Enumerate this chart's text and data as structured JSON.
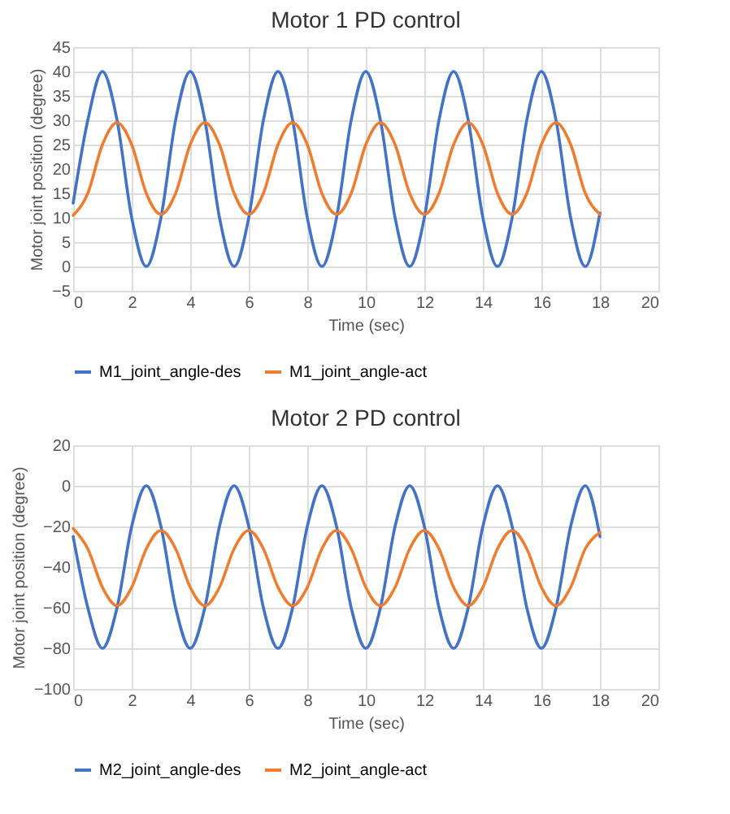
{
  "chart_data": [
    {
      "type": "line",
      "title": "Motor 1 PD control",
      "xlabel": "Time (sec)",
      "ylabel": "Motor joint position (degree)",
      "x": [
        0,
        0.5,
        1,
        1.5,
        2,
        2.5,
        3,
        3.5,
        4,
        4.5,
        5,
        5.5,
        6,
        6.5,
        7,
        7.5,
        8,
        8.5,
        9,
        9.5,
        10,
        10.5,
        11,
        11.5,
        12,
        12.5,
        13,
        13.5,
        14,
        14.5,
        15,
        15.5,
        16,
        16.5,
        17,
        17.5,
        18
      ],
      "series": [
        {
          "name": "M1_joint_angle-des",
          "color": "#4472c4",
          "values": [
            13,
            30,
            40,
            30,
            10,
            0,
            10,
            30,
            40,
            30,
            10,
            0,
            10,
            30,
            40,
            30,
            10,
            0,
            10,
            30,
            40,
            30,
            10,
            0,
            10,
            30,
            40,
            30,
            10,
            0,
            10,
            30,
            40,
            30,
            10,
            0,
            11
          ]
        },
        {
          "name": "M1_joint_angle-act",
          "color": "#ed7d31",
          "values": [
            10.5,
            15,
            25,
            29.5,
            25,
            15,
            10.7,
            15,
            25,
            29.5,
            25,
            15,
            10.7,
            15,
            25,
            29.5,
            25,
            15,
            10.7,
            15,
            25,
            29.5,
            25,
            15,
            10.7,
            15,
            25,
            29.5,
            25,
            15,
            10.7,
            15,
            25,
            29.5,
            25,
            15,
            10.7
          ]
        }
      ],
      "xlim": [
        0,
        20
      ],
      "xticks": [
        0,
        2,
        4,
        6,
        8,
        10,
        12,
        14,
        16,
        18,
        20
      ],
      "ylim": [
        -5,
        45
      ],
      "yticks": [
        -5,
        0,
        5,
        10,
        15,
        20,
        25,
        30,
        35,
        40,
        45
      ],
      "grid": true,
      "legend": "bottom",
      "marker": "none",
      "line_style": "solid"
    },
    {
      "type": "line",
      "title": "Motor 2 PD control",
      "xlabel": "Time (sec)",
      "ylabel": "Motor joint position (degree)",
      "x": [
        0,
        0.5,
        1,
        1.5,
        2,
        2.5,
        3,
        3.5,
        4,
        4.5,
        5,
        5.5,
        6,
        6.5,
        7,
        7.5,
        8,
        8.5,
        9,
        9.5,
        10,
        10.5,
        11,
        11.5,
        12,
        12.5,
        13,
        13.5,
        14,
        14.5,
        15,
        15.5,
        16,
        16.5,
        17,
        17.5,
        18
      ],
      "series": [
        {
          "name": "M2_joint_angle-des",
          "color": "#4472c4",
          "values": [
            -25,
            -60,
            -80,
            -60,
            -20,
            0,
            -20,
            -60,
            -80,
            -60,
            -20,
            0,
            -20,
            -60,
            -80,
            -60,
            -20,
            0,
            -20,
            -60,
            -80,
            -60,
            -20,
            0,
            -20,
            -60,
            -80,
            -60,
            -20,
            0,
            -20,
            -60,
            -80,
            -60,
            -20,
            0,
            -25
          ]
        },
        {
          "name": "M2_joint_angle-act",
          "color": "#ed7d31",
          "values": [
            -21,
            -31,
            -50,
            -59,
            -50,
            -31,
            -22,
            -31,
            -50,
            -59,
            -50,
            -31,
            -22,
            -31,
            -50,
            -59,
            -50,
            -31,
            -22,
            -31,
            -50,
            -59,
            -50,
            -31,
            -22,
            -31,
            -50,
            -59,
            -50,
            -31,
            -22,
            -31,
            -50,
            -59,
            -50,
            -31,
            -23
          ]
        }
      ],
      "xlim": [
        0,
        20
      ],
      "xticks": [
        0,
        2,
        4,
        6,
        8,
        10,
        12,
        14,
        16,
        18,
        20
      ],
      "ylim": [
        -100,
        20
      ],
      "yticks": [
        -100,
        -80,
        -60,
        -40,
        -20,
        0,
        20
      ],
      "grid": true,
      "legend": "bottom",
      "marker": "none",
      "line_style": "solid"
    }
  ]
}
